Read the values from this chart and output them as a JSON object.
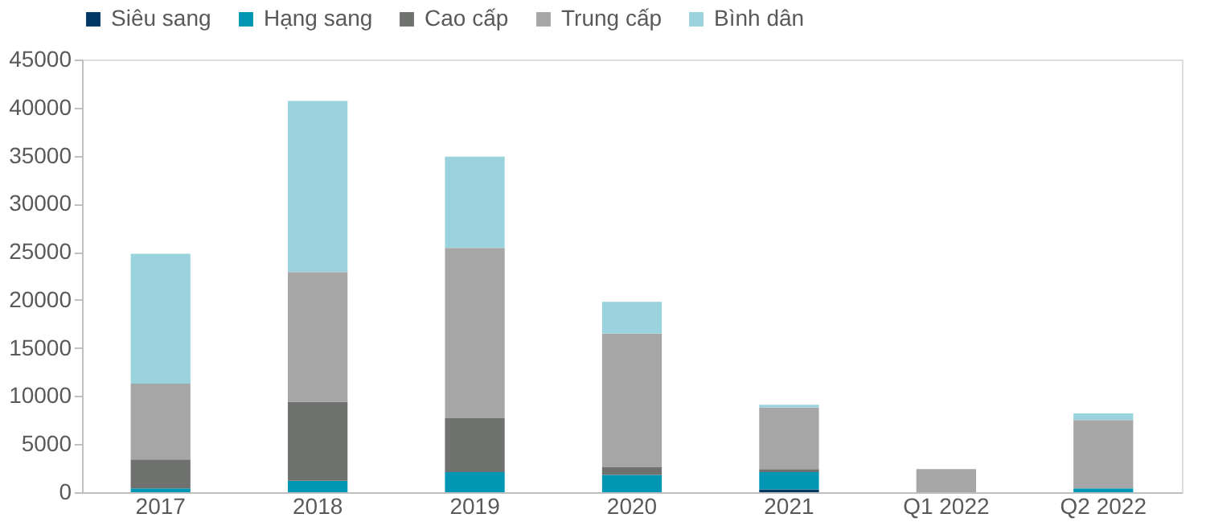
{
  "chart_data": {
    "type": "bar",
    "stacked": true,
    "categories": [
      "2017",
      "2018",
      "2019",
      "2020",
      "2021",
      "Q1 2022",
      "Q2 2022"
    ],
    "series": [
      {
        "name": "Siêu sang",
        "color": "#003865",
        "values": [
          null,
          null,
          null,
          null,
          300,
          null,
          null
        ]
      },
      {
        "name": "Hạng sang",
        "color": "#0096b4",
        "values": [
          400,
          1200,
          2100,
          1800,
          1800,
          null,
          400
        ]
      },
      {
        "name": "Cao cấp",
        "color": "#6f716f",
        "values": [
          3000,
          8200,
          5600,
          800,
          300,
          null,
          null
        ]
      },
      {
        "name": "Trung cấp",
        "color": "#a6a6a6",
        "values": [
          7900,
          13500,
          17700,
          13900,
          6400,
          2400,
          7100
        ]
      },
      {
        "name": "Bình dân",
        "color": "#9ad3de",
        "values": [
          13500,
          17800,
          9500,
          3300,
          300,
          null,
          700
        ]
      }
    ],
    "ylim": [
      0,
      45000
    ],
    "yticks": [
      0,
      5000,
      10000,
      15000,
      20000,
      25000,
      30000,
      35000,
      40000,
      45000
    ],
    "grid": false,
    "legend": "top"
  }
}
